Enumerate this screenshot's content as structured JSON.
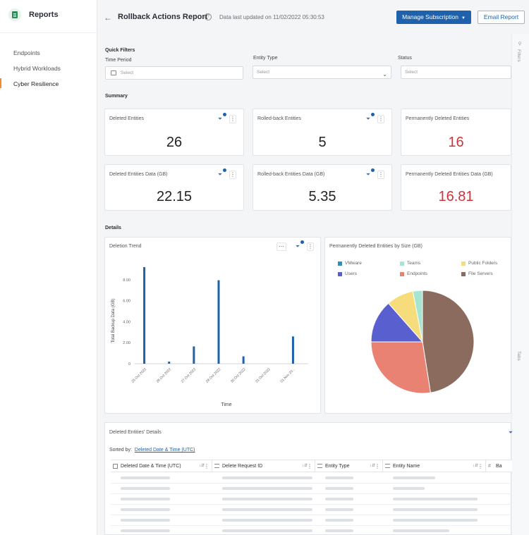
{
  "sidebar": {
    "title": "Reports",
    "items": [
      {
        "label": "Endpoints",
        "active": false
      },
      {
        "label": "Hybrid Workloads",
        "active": false
      },
      {
        "label": "Cyber Resilience",
        "active": true
      }
    ]
  },
  "header": {
    "title": "Rollback Actions Report",
    "updated": "Data last updated on 11/02/2022 05:30:53",
    "manage_label": "Manage Subscription",
    "email_label": "Email Report",
    "accent": "#1e62ae"
  },
  "right_rail": {
    "filters_label": "Filters",
    "tabs_label": "Tabs"
  },
  "quick_filters": {
    "label": "Quick Filters",
    "time_period": {
      "label": "Time Period",
      "placeholder": "Select"
    },
    "entity_type": {
      "label": "Entity Type",
      "placeholder": "Select"
    },
    "status": {
      "label": "Status",
      "placeholder": "Select"
    }
  },
  "summary": {
    "label": "Summary",
    "cards": [
      {
        "title": "Deleted Entities",
        "value": "26",
        "red": false
      },
      {
        "title": "Rolled-back Entities",
        "value": "5",
        "red": false
      },
      {
        "title": "Permanently Deleted Entities",
        "value": "16",
        "red": true
      },
      {
        "title": "Deleted Entities Data (GB)",
        "value": "22.15",
        "red": false
      },
      {
        "title": "Rolled-back Entities Data (GB)",
        "value": "5.35",
        "red": false
      },
      {
        "title": "Permanently Deleted Entities Data (GB)",
        "value": "16.81",
        "red": true
      }
    ]
  },
  "details": {
    "label": "Details"
  },
  "chart_data": [
    {
      "type": "bar",
      "title": "Deletion Trend",
      "xlabel": "Time",
      "ylabel": "Total Backup Data (GB)",
      "categories": [
        "25 Oct 2022",
        "26 Oct 2022",
        "27 Oct 2022",
        "28 Oct 2022",
        "30 Oct 2022",
        "31 Oct 2022",
        "01 Nov 20..."
      ],
      "x_index": [
        0,
        1,
        2,
        3,
        4,
        5,
        6
      ],
      "values": [
        9.2,
        0.2,
        1.65,
        7.95,
        0.7,
        0,
        2.6
      ],
      "yticks": [
        "0",
        "2.00",
        "4.00",
        "6.00",
        "8.00"
      ],
      "ylim": [
        0,
        10
      ],
      "grid": false,
      "color": "#1e62ae"
    },
    {
      "type": "pie",
      "title": "Permanently Deleted Entities by Size (GB)",
      "legend_position": "top",
      "slices": [
        {
          "name": "File Servers",
          "value": 47.5,
          "color": "#8b6b5d"
        },
        {
          "name": "Endpoints",
          "value": 27.5,
          "color": "#e98272"
        },
        {
          "name": "Users",
          "value": 13.5,
          "color": "#5a5fd0"
        },
        {
          "name": "Public Folders",
          "value": 8.5,
          "color": "#f6dc7a"
        },
        {
          "name": "Teams",
          "value": 3,
          "color": "#a6e5cf"
        },
        {
          "name": "VMware",
          "value": 0,
          "color": "#2f8fb5"
        }
      ],
      "legend": [
        {
          "name": "VMware",
          "color": "#2f8fb5"
        },
        {
          "name": "Teams",
          "color": "#a6e5cf"
        },
        {
          "name": "Public Folders",
          "color": "#f6dc7a"
        },
        {
          "name": "Users",
          "color": "#5a5fd0"
        },
        {
          "name": "Endpoints",
          "color": "#e98272"
        },
        {
          "name": "File Servers",
          "color": "#8b6b5d"
        }
      ]
    }
  ],
  "table": {
    "title": "Deleted Entities' Details",
    "sorted_by_label": "Sorted by:",
    "sorted_by_value": "Deleted Date & Time (UTC)",
    "columns": [
      "Deleted Date & Time (UTC)",
      "Delete Request ID",
      "Entity Type",
      "Entity Name",
      "Ba"
    ]
  }
}
